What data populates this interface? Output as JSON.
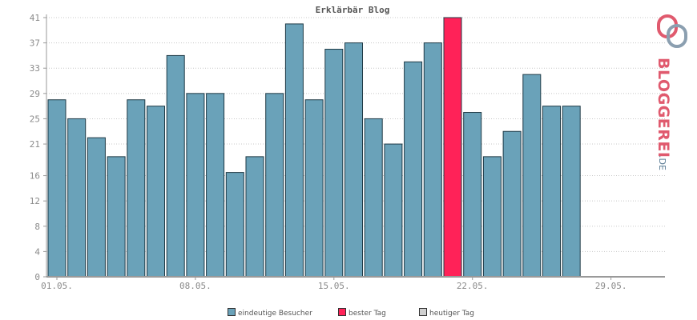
{
  "chart_data": {
    "type": "bar",
    "title": "Erklärbär Blog",
    "ylim": [
      0,
      41
    ],
    "yticks": [
      0,
      4,
      8,
      12,
      16,
      21,
      25,
      29,
      33,
      37,
      41
    ],
    "xticks": [
      "01.05.",
      "08.05.",
      "15.05.",
      "22.05.",
      "29.05."
    ],
    "xtick_day_index": [
      0,
      7,
      14,
      21,
      28
    ],
    "days_in_range": 31,
    "grid": true,
    "legend_position": "bottom",
    "series": [
      {
        "name": "eindeutige Besucher",
        "color": "#6aa2b9",
        "values": [
          28,
          25,
          22,
          19,
          28,
          27,
          35,
          29,
          29,
          16.5,
          19,
          29,
          40,
          28,
          36,
          37,
          25,
          21,
          34,
          37,
          41,
          26,
          19,
          23,
          32,
          27,
          27
        ]
      }
    ],
    "best_day_index": 20,
    "best_day_color": "#ff2258",
    "today_color": "#d0d0d0"
  },
  "legend": [
    {
      "label": "eindeutige Besucher",
      "color": "#6aa2b9"
    },
    {
      "label": "bester Tag",
      "color": "#ff2258"
    },
    {
      "label": "heutiger Tag",
      "color": "#d0d0d0"
    }
  ],
  "logo": {
    "text": "BLOGGEREI",
    "suffix": ".DE"
  }
}
